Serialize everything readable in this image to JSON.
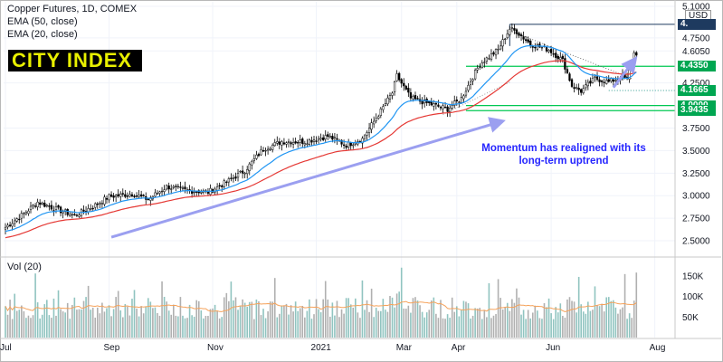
{
  "legend": {
    "symbol": "Copper Futures, 1D, COMEX",
    "ema50": "EMA (50, close)",
    "ema20": "EMA (20, close)"
  },
  "brand": "CITY INDEX",
  "annotation": "Momentum has realigned with its long-term uptrend",
  "currency": "USD",
  "volume_legend": "Vol (20)",
  "colors": {
    "up": "#26a69a",
    "down": "#ef5350",
    "candle": "#000000",
    "ema20": "#2196f3",
    "ema50": "#e53935",
    "level_line": "#00c853",
    "label_green": "#00a651",
    "label_dark": "#1e3a5f",
    "arrow": "#9b9ff0",
    "vol_bar": "#90c4c0",
    "vol_ma": "#f5a25a"
  },
  "chart_data": {
    "type": "candlestick",
    "title": "Copper Futures, 1D, COMEX",
    "ylim": [
      2.35,
      5.15
    ],
    "y_ticks": [
      "5.1000",
      "4.7500",
      "4.6050",
      "4.2500",
      "3.7500",
      "3.5000",
      "3.2500",
      "3.0000",
      "2.7500",
      "2.5000"
    ],
    "y_tick_values": [
      5.1,
      4.75,
      4.605,
      4.25,
      3.75,
      3.5,
      3.25,
      3.0,
      2.75,
      2.5
    ],
    "x_ticks": [
      "Jul",
      "Sep",
      "Nov",
      "2021",
      "Mar",
      "Apr",
      "Jun",
      "Aug"
    ],
    "x_tick_positions": [
      0,
      45,
      90,
      135,
      172,
      196,
      237,
      282
    ],
    "n_bars": 275,
    "price_path_anchors": [
      [
        0,
        2.65
      ],
      [
        8,
        2.8
      ],
      [
        14,
        2.93
      ],
      [
        20,
        2.87
      ],
      [
        30,
        2.78
      ],
      [
        38,
        2.88
      ],
      [
        45,
        2.99
      ],
      [
        55,
        3.02
      ],
      [
        62,
        2.96
      ],
      [
        70,
        3.1
      ],
      [
        78,
        3.06
      ],
      [
        88,
        3.04
      ],
      [
        96,
        3.15
      ],
      [
        104,
        3.28
      ],
      [
        112,
        3.52
      ],
      [
        120,
        3.6
      ],
      [
        130,
        3.6
      ],
      [
        140,
        3.66
      ],
      [
        148,
        3.56
      ],
      [
        155,
        3.63
      ],
      [
        162,
        3.9
      ],
      [
        168,
        4.14
      ],
      [
        170,
        4.33
      ],
      [
        176,
        4.08
      ],
      [
        184,
        4.02
      ],
      [
        192,
        3.96
      ],
      [
        198,
        4.08
      ],
      [
        206,
        4.46
      ],
      [
        214,
        4.62
      ],
      [
        219,
        4.85
      ],
      [
        222,
        4.82
      ],
      [
        228,
        4.68
      ],
      [
        236,
        4.62
      ],
      [
        242,
        4.5
      ],
      [
        246,
        4.22
      ],
      [
        250,
        4.16
      ],
      [
        256,
        4.3
      ],
      [
        262,
        4.26
      ],
      [
        268,
        4.32
      ],
      [
        270,
        4.28
      ],
      [
        273,
        4.58
      ]
    ],
    "levels": [
      {
        "label": "4.4350",
        "value": 4.435,
        "style": "solid"
      },
      {
        "label": "4.1665",
        "value": 4.1665,
        "style": "dotted"
      },
      {
        "label": "4.0000",
        "value": 4.0,
        "style": "solid"
      },
      {
        "label": "3.9435",
        "value": 3.9435,
        "style": "solid"
      }
    ],
    "price_labels": [
      {
        "label": "4.",
        "value": 4.9,
        "kind": "dark"
      },
      {
        "label": "4.4350",
        "value": 4.435,
        "kind": "green"
      },
      {
        "label": "4.1665",
        "value": 4.1665,
        "kind": "green"
      },
      {
        "label": "4.0000",
        "value": 4.0,
        "kind": "green"
      },
      {
        "label": "3.9435",
        "value": 3.9435,
        "kind": "green"
      }
    ],
    "trend_arrow": {
      "from": [
        46,
        2.54
      ],
      "to": [
        215,
        3.82
      ]
    },
    "short_arrow": {
      "from": [
        264,
        4.2
      ],
      "to": [
        273,
        4.5
      ]
    },
    "volume": {
      "ylim": [
        0,
        190000
      ],
      "y_ticks": [
        "150K",
        "100K",
        "50K"
      ],
      "y_tick_values": [
        150000,
        100000,
        50000
      ]
    }
  }
}
